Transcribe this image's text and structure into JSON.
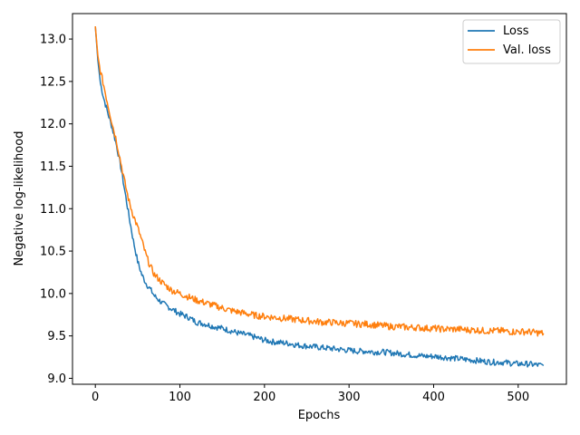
{
  "chart_data": {
    "type": "line",
    "title": "",
    "xlabel": "Epochs",
    "ylabel": "Negative log-likelihood",
    "xlim": [
      -27,
      557
    ],
    "ylim": [
      8.93,
      13.3
    ],
    "xticks": [
      0,
      100,
      200,
      300,
      400,
      500
    ],
    "yticks": [
      9.0,
      9.5,
      10.0,
      10.5,
      11.0,
      11.5,
      12.0,
      12.5,
      13.0
    ],
    "ytick_labels": [
      "9.0",
      "9.5",
      "10.0",
      "10.5",
      "11.0",
      "11.5",
      "12.0",
      "12.5",
      "13.0"
    ],
    "grid": false,
    "legend_position": "top-right",
    "series": [
      {
        "name": "Loss",
        "color": "#1f77b4",
        "x": [
          0,
          3,
          6,
          10,
          15,
          20,
          25,
          30,
          35,
          40,
          45,
          50,
          55,
          60,
          65,
          70,
          80,
          90,
          100,
          110,
          120,
          130,
          140,
          150,
          160,
          170,
          180,
          190,
          200,
          210,
          220,
          230,
          240,
          250,
          260,
          270,
          280,
          290,
          300,
          310,
          320,
          330,
          340,
          350,
          360,
          370,
          380,
          390,
          400,
          410,
          420,
          430,
          440,
          450,
          460,
          470,
          480,
          490,
          500,
          510,
          520,
          530
        ],
        "values": [
          13.15,
          12.75,
          12.48,
          12.3,
          12.12,
          11.95,
          11.75,
          11.5,
          11.2,
          10.9,
          10.62,
          10.38,
          10.22,
          10.12,
          10.05,
          9.97,
          9.88,
          9.82,
          9.76,
          9.72,
          9.66,
          9.64,
          9.61,
          9.59,
          9.56,
          9.53,
          9.51,
          9.48,
          9.45,
          9.43,
          9.42,
          9.41,
          9.39,
          9.38,
          9.37,
          9.36,
          9.35,
          9.34,
          9.33,
          9.32,
          9.32,
          9.31,
          9.31,
          9.3,
          9.29,
          9.28,
          9.27,
          9.26,
          9.26,
          9.25,
          9.24,
          9.23,
          9.22,
          9.21,
          9.2,
          9.19,
          9.19,
          9.18,
          9.17,
          9.17,
          9.16,
          9.15
        ]
      },
      {
        "name": "Val. loss",
        "color": "#ff7f0e",
        "x": [
          0,
          3,
          6,
          10,
          15,
          20,
          25,
          30,
          35,
          40,
          45,
          50,
          55,
          60,
          65,
          70,
          80,
          90,
          100,
          110,
          120,
          130,
          140,
          150,
          160,
          170,
          180,
          190,
          200,
          210,
          220,
          230,
          240,
          250,
          260,
          270,
          280,
          290,
          300,
          310,
          320,
          330,
          340,
          350,
          360,
          370,
          380,
          390,
          400,
          410,
          420,
          430,
          440,
          450,
          460,
          470,
          480,
          490,
          500,
          510,
          520,
          530
        ],
        "values": [
          13.15,
          12.8,
          12.62,
          12.45,
          12.22,
          12.0,
          11.8,
          11.55,
          11.3,
          11.08,
          10.92,
          10.78,
          10.62,
          10.45,
          10.32,
          10.22,
          10.12,
          10.04,
          10.0,
          9.96,
          9.92,
          9.89,
          9.86,
          9.83,
          9.8,
          9.78,
          9.76,
          9.74,
          9.73,
          9.72,
          9.71,
          9.7,
          9.69,
          9.68,
          9.67,
          9.66,
          9.66,
          9.65,
          9.65,
          9.64,
          9.64,
          9.63,
          9.62,
          9.61,
          9.61,
          9.6,
          9.6,
          9.59,
          9.59,
          9.58,
          9.58,
          9.58,
          9.57,
          9.57,
          9.56,
          9.56,
          9.56,
          9.55,
          9.55,
          9.55,
          9.54,
          9.53
        ]
      }
    ]
  }
}
